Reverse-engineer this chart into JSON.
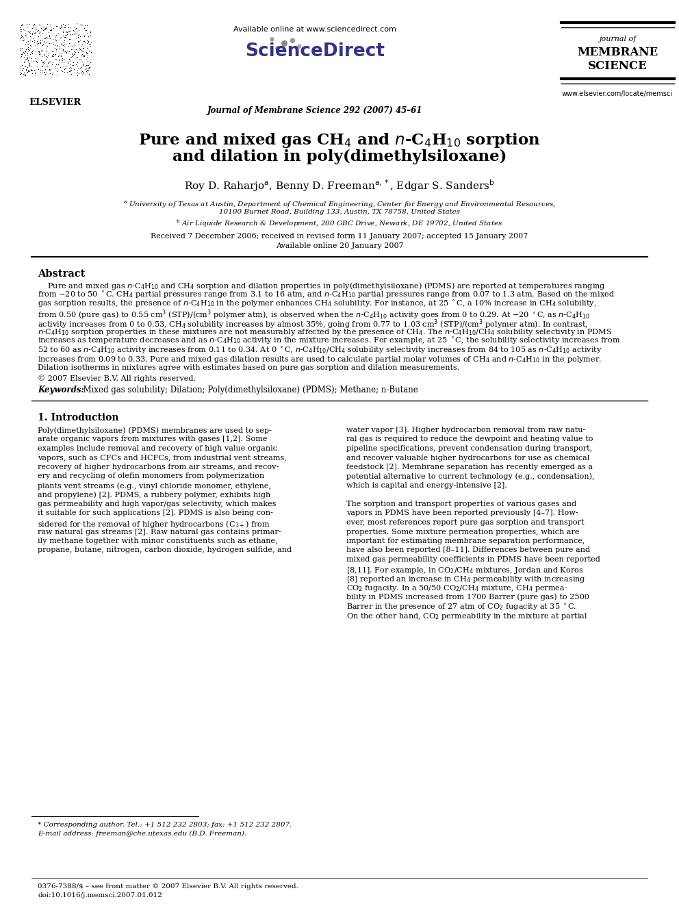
{
  "background_color": "#ffffff",
  "header": {
    "available_online": "Available online at www.sciencedirect.com",
    "journal_name_center": "Journal of Membrane Science 292 (2007) 45–61",
    "journal_of": "journal of",
    "membrane": "MEMBRANE",
    "science": "SCIENCE",
    "website": "www.elsevier.com/locate/memsci",
    "elsevier": "ELSEVIER"
  },
  "title_str1": "Pure and mixed gas CH$_4$ and $n$-C$_4$H$_{10}$ sorption",
  "title_str2": "and dilation in poly(dimethylsiloxane)",
  "authors_str": "Roy D. Raharjo$^{\\rm a}$, Benny D. Freeman$^{\\rm a,*}$, Edgar S. Sanders$^{\\rm b}$",
  "affil_a": "$^{\\rm a}$ University of Texas at Austin, Department of Chemical Engineering, Center for Energy and Environmental Resources,",
  "affil_a2": "10100 Burnet Road, Building 133, Austin, TX 78758, United States",
  "affil_b": "$^{\\rm b}$ Air Liquide Research & Development, 200 GBC Drive, Newark, DE 19702, United States",
  "received": "Received 7 December 2006; received in revised form 11 January 2007; accepted 15 January 2007",
  "available": "Available online 20 January 2007",
  "copyright": "© 2007 Elsevier B.V. All rights reserved.",
  "keywords_label": "Keywords:",
  "keywords": "  Mixed gas solubility; Dilation; Poly(dimethylsiloxane) (PDMS); Methane; n-Butane",
  "section1_title": "1. Introduction",
  "footnote1": "* Corresponding author. Tel.: +1 512 232 2803; fax: +1 512 232 2807.",
  "footnote2": "E-mail address: freeman@che.utexas.edu (B.D. Freeman).",
  "footer_issn": "0376-7388/$ – see front matter © 2007 Elsevier B.V. All rights reserved.",
  "footer_doi": "doi:10.1016/j.memsci.2007.01.012"
}
